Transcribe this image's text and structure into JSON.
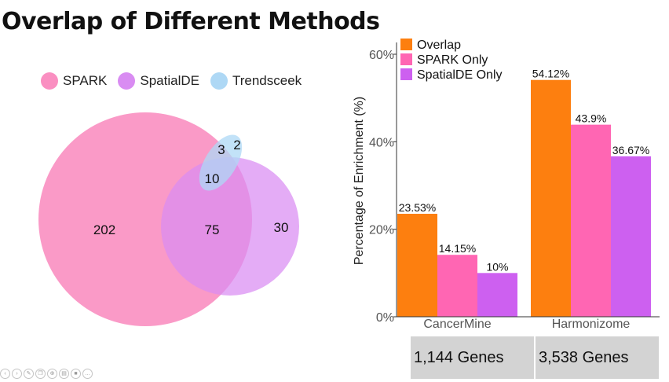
{
  "title": "Overlap of Different Methods",
  "venn": {
    "legend": [
      {
        "label": "SPARK",
        "color": "#fa8fc1"
      },
      {
        "label": "SpatialDE",
        "color": "#d98cf2"
      },
      {
        "label": "Trendsceek",
        "color": "#aed8f5"
      }
    ],
    "counts": {
      "spark_only": "202",
      "spark_spatialde": "75",
      "spatialde_only": "30",
      "all_three": "10",
      "spark_trendsceek": "3",
      "trendsceek_only": "2"
    }
  },
  "chart_data": {
    "type": "bar",
    "categories": [
      "CancerMine",
      "Harmonizome"
    ],
    "series": [
      {
        "name": "Overlap",
        "color": "#fd7f0f",
        "values": [
          23.53,
          54.12
        ],
        "labels": [
          "23.53%",
          "54.12%"
        ]
      },
      {
        "name": "SPARK Only",
        "color": "#ff66b3",
        "values": [
          14.15,
          43.9
        ],
        "labels": [
          "14.15%",
          "43.9%"
        ]
      },
      {
        "name": "SpatialDE Only",
        "color": "#cd60f0",
        "values": [
          10,
          36.67
        ],
        "labels": [
          "10%",
          "36.67%"
        ]
      }
    ],
    "ylabel": "Percentage of Enrichment (%)",
    "xlabel": "",
    "ylim": [
      0,
      62
    ],
    "yticks": [
      0,
      20,
      40,
      60
    ],
    "ytick_labels": [
      "0%",
      "20%",
      "40%",
      "60%"
    ],
    "legend_position": "top-left",
    "grid": false
  },
  "gene_counts": [
    "1,144 Genes",
    "3,538 Genes"
  ],
  "toolbar": {
    "icons": [
      "back-icon",
      "forward-icon",
      "pen-icon",
      "copy-icon",
      "zoom-icon",
      "slides-icon",
      "camera-icon",
      "more-icon"
    ]
  }
}
